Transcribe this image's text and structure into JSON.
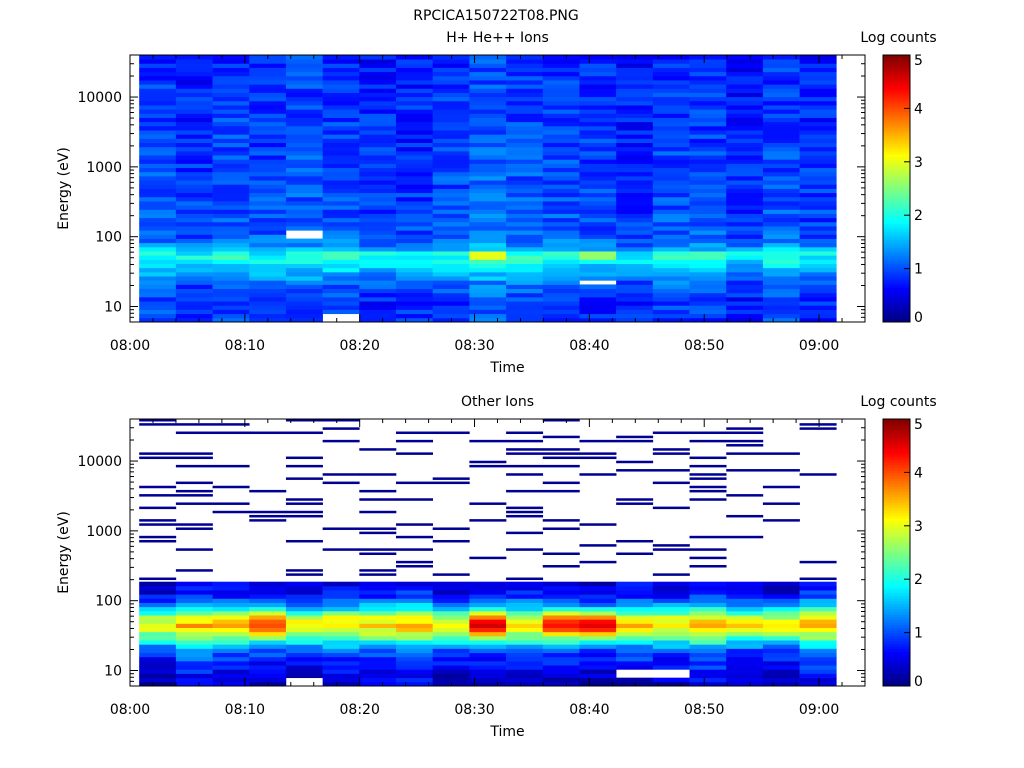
{
  "figure_title": "RPCICA150722T08.PNG",
  "colors": {
    "colormap": [
      "#00007f",
      "#0000ff",
      "#007fff",
      "#00ffff",
      "#7fff7f",
      "#ffff00",
      "#ff7f00",
      "#ff0000",
      "#7f0000"
    ],
    "frame": "#000000",
    "background": "#ffffff"
  },
  "chart_data": [
    {
      "type": "heatmap",
      "title": "H+ He++ Ions",
      "xlabel": "Time",
      "ylabel": "Energy (eV)",
      "x_ticks": [
        "08:00",
        "08:10",
        "08:20",
        "08:30",
        "08:40",
        "08:50",
        "09:00"
      ],
      "y_ticks": [
        "10",
        "100",
        "1000",
        "10000"
      ],
      "y_scale": "log",
      "ylim": [
        6,
        40000
      ],
      "xlim_minutes": [
        0,
        64
      ],
      "data_xlim_minutes": [
        0.8,
        61.5
      ],
      "columns": 19,
      "colorbar": {
        "label": "Log counts",
        "ticks": [
          "0",
          "1",
          "2",
          "3",
          "4",
          "5"
        ],
        "range": [
          0,
          5
        ]
      },
      "profile": [
        [
          6,
          0.9
        ],
        [
          12,
          0.85
        ],
        [
          20,
          1.05
        ],
        [
          35,
          1.6
        ],
        [
          55,
          2.0
        ],
        [
          80,
          1.15
        ],
        [
          150,
          1.0
        ],
        [
          400,
          0.95
        ],
        [
          2000,
          0.9
        ],
        [
          10000,
          0.85
        ],
        [
          40000,
          0.8
        ]
      ],
      "annotations": [
        {
          "energy_eV": 55,
          "column": 9,
          "log_counts": 3.0
        },
        {
          "energy_eV": 55,
          "column": 12,
          "log_counts": 2.6
        },
        {
          "energy_eV": 55,
          "column": 5,
          "log_counts": 2.2
        },
        {
          "energy_eV": 55,
          "column": 15,
          "log_counts": 2.2
        },
        {
          "energy_eV": 55,
          "column": 17,
          "log_counts": 2.0
        }
      ],
      "empty_cells": [
        {
          "energy_eV": 110,
          "column": 4
        },
        {
          "energy_eV": 22,
          "column": 12
        },
        {
          "energy_eV": 7,
          "column": 5
        }
      ]
    },
    {
      "type": "heatmap",
      "title": "Other Ions",
      "xlabel": "Time",
      "ylabel": "Energy (eV)",
      "x_ticks": [
        "08:00",
        "08:10",
        "08:20",
        "08:30",
        "08:40",
        "08:50",
        "09:00"
      ],
      "y_ticks": [
        "10",
        "100",
        "1000",
        "10000"
      ],
      "y_scale": "log",
      "ylim": [
        6,
        40000
      ],
      "xlim_minutes": [
        0,
        64
      ],
      "data_xlim_minutes": [
        0.8,
        61.5
      ],
      "columns": 19,
      "colorbar": {
        "label": "Log counts",
        "ticks": [
          "0",
          "1",
          "2",
          "3",
          "4",
          "5"
        ],
        "range": [
          0,
          5
        ]
      },
      "profile": [
        [
          6,
          0.3
        ],
        [
          10,
          0.6
        ],
        [
          20,
          1.1
        ],
        [
          30,
          2.4
        ],
        [
          45,
          3.4
        ],
        [
          60,
          2.8
        ],
        [
          80,
          1.6
        ],
        [
          120,
          0.7
        ],
        [
          200,
          0.45
        ]
      ],
      "continuum_max_eV": 200,
      "sparse_range_eV": [
        200,
        40000
      ],
      "sparse_log_counts": 0.1,
      "peak_columns": [
        {
          "column": 9,
          "log_counts": 4.6
        },
        {
          "column": 12,
          "log_counts": 4.5
        },
        {
          "column": 11,
          "log_counts": 4.3
        },
        {
          "column": 3,
          "log_counts": 4.0
        }
      ],
      "empty_cells": [
        {
          "energy_eV": 7,
          "column": 4
        },
        {
          "energy_eV": 9,
          "column": 13
        },
        {
          "energy_eV": 9,
          "column": 14
        }
      ]
    }
  ]
}
